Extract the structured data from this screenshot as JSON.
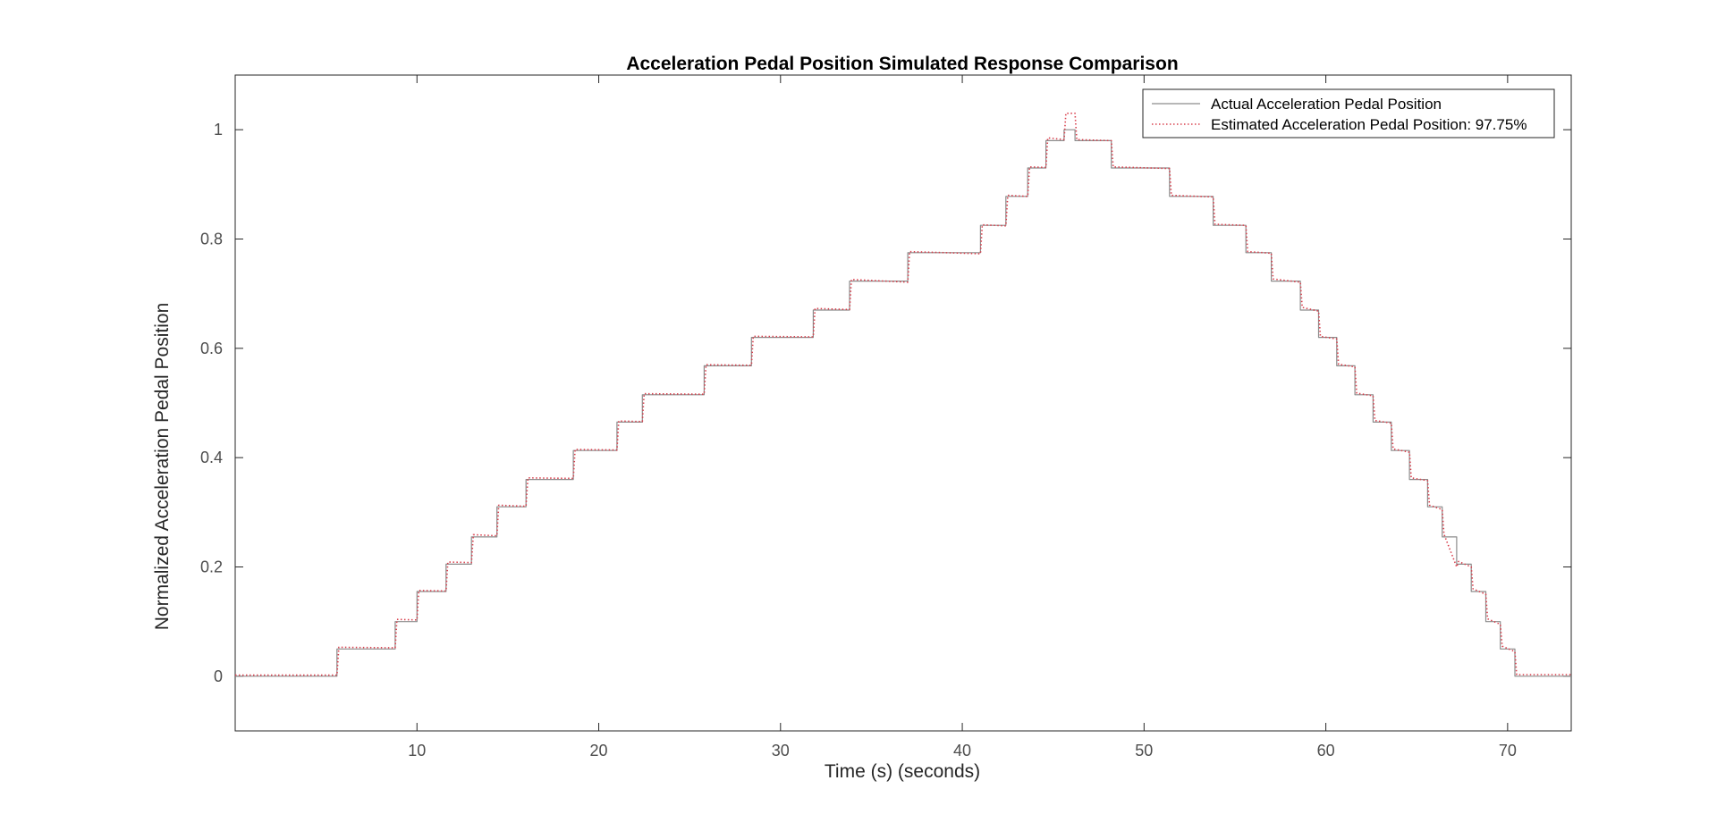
{
  "chart_data": {
    "type": "line",
    "title": "Acceleration Pedal Position Simulated Response Comparison",
    "xlabel": "Time (s) (seconds)",
    "ylabel": "Normalized Acceleration Pedal Position",
    "xlim": [
      0,
      73.5
    ],
    "ylim": [
      -0.1,
      1.1
    ],
    "xticks": [
      10,
      20,
      30,
      40,
      50,
      60,
      70
    ],
    "yticks": [
      0,
      0.2,
      0.4,
      0.6,
      0.8,
      1
    ],
    "grid": false,
    "legend_position": "top-right",
    "series": [
      {
        "name": "Actual Acceleration Pedal Position",
        "color": "#8c8c8c",
        "style": "solid",
        "x": [
          0,
          5.6,
          5.6,
          8.8,
          8.8,
          10.0,
          10.0,
          11.6,
          11.6,
          13.0,
          13.0,
          14.4,
          14.4,
          16.0,
          16.0,
          18.6,
          18.6,
          21.0,
          21.0,
          22.4,
          22.4,
          25.8,
          25.8,
          28.4,
          28.4,
          31.8,
          31.8,
          33.8,
          33.8,
          37.0,
          37.0,
          41.0,
          41.0,
          42.4,
          42.4,
          43.6,
          43.6,
          44.6,
          44.6,
          45.6,
          45.6,
          46.2,
          46.2,
          48.2,
          48.2,
          51.4,
          51.4,
          53.8,
          53.8,
          55.6,
          55.6,
          57.0,
          57.0,
          58.6,
          58.6,
          59.6,
          59.6,
          60.6,
          60.6,
          61.6,
          61.6,
          62.6,
          62.6,
          63.6,
          63.6,
          64.6,
          64.6,
          65.6,
          65.6,
          66.4,
          66.4,
          67.2,
          67.2,
          68.0,
          68.0,
          68.8,
          68.8,
          69.6,
          69.6,
          70.4,
          70.4,
          73.5
        ],
        "y": [
          0,
          0,
          0.05,
          0.05,
          0.1,
          0.1,
          0.155,
          0.155,
          0.205,
          0.205,
          0.255,
          0.255,
          0.31,
          0.31,
          0.36,
          0.36,
          0.413,
          0.413,
          0.465,
          0.465,
          0.515,
          0.515,
          0.568,
          0.568,
          0.62,
          0.62,
          0.67,
          0.67,
          0.723,
          0.723,
          0.775,
          0.775,
          0.825,
          0.825,
          0.878,
          0.878,
          0.93,
          0.93,
          0.98,
          0.98,
          1.0,
          1.0,
          0.98,
          0.98,
          0.93,
          0.93,
          0.878,
          0.878,
          0.825,
          0.825,
          0.775,
          0.775,
          0.723,
          0.723,
          0.67,
          0.67,
          0.62,
          0.62,
          0.568,
          0.568,
          0.515,
          0.515,
          0.465,
          0.465,
          0.413,
          0.413,
          0.36,
          0.36,
          0.31,
          0.31,
          0.255,
          0.255,
          0.205,
          0.205,
          0.155,
          0.155,
          0.1,
          0.1,
          0.05,
          0.05,
          0,
          0
        ]
      },
      {
        "name": "Estimated Acceleration Pedal Position: 97.75%",
        "color": "#d9424f",
        "style": "dotted",
        "x": [
          0,
          5.6,
          5.7,
          8.8,
          8.9,
          10.0,
          10.1,
          11.6,
          11.7,
          13.0,
          13.1,
          14.4,
          14.5,
          16.0,
          16.1,
          18.6,
          18.7,
          21.0,
          21.1,
          22.4,
          22.5,
          25.8,
          25.9,
          28.4,
          28.5,
          31.8,
          31.9,
          33.8,
          33.9,
          37.0,
          37.1,
          41.0,
          41.1,
          42.4,
          42.5,
          43.6,
          43.7,
          44.6,
          44.7,
          45.6,
          45.7,
          46.2,
          46.3,
          48.2,
          48.3,
          51.4,
          51.5,
          53.8,
          53.9,
          55.6,
          55.7,
          57.0,
          57.1,
          58.6,
          58.7,
          59.6,
          59.7,
          60.6,
          60.7,
          61.6,
          61.7,
          62.6,
          62.7,
          63.6,
          63.7,
          64.6,
          64.7,
          65.6,
          65.7,
          66.4,
          66.5,
          67.2,
          67.3,
          68.0,
          68.1,
          68.8,
          68.9,
          69.6,
          69.7,
          70.4,
          70.5,
          73.5
        ],
        "y": [
          0.002,
          0.002,
          0.053,
          0.052,
          0.104,
          0.103,
          0.157,
          0.156,
          0.209,
          0.208,
          0.259,
          0.257,
          0.313,
          0.311,
          0.363,
          0.362,
          0.415,
          0.414,
          0.467,
          0.466,
          0.517,
          0.516,
          0.57,
          0.569,
          0.622,
          0.621,
          0.673,
          0.671,
          0.726,
          0.721,
          0.777,
          0.773,
          0.826,
          0.824,
          0.88,
          0.878,
          0.932,
          0.931,
          0.985,
          0.982,
          1.03,
          1.03,
          0.982,
          0.98,
          0.932,
          0.929,
          0.88,
          0.877,
          0.827,
          0.825,
          0.777,
          0.774,
          0.727,
          0.721,
          0.675,
          0.668,
          0.622,
          0.617,
          0.571,
          0.566,
          0.518,
          0.513,
          0.468,
          0.463,
          0.416,
          0.41,
          0.363,
          0.358,
          0.313,
          0.305,
          0.26,
          0.2,
          0.21,
          0.2,
          0.16,
          0.15,
          0.105,
          0.095,
          0.055,
          0.045,
          0.003,
          0.003
        ]
      }
    ]
  }
}
